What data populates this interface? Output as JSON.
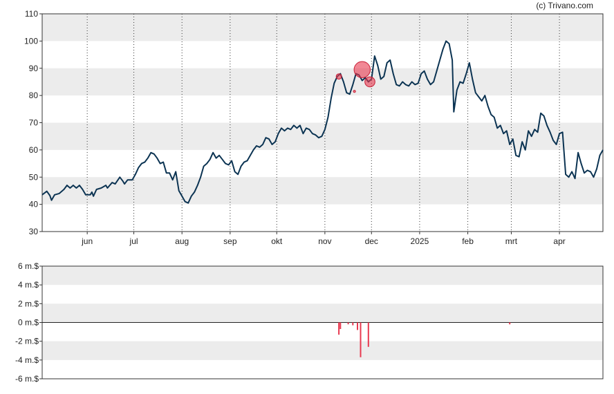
{
  "copyright": "(c) Trivano.com",
  "chart_data": [
    {
      "type": "line",
      "title": "",
      "xlabel": "",
      "ylabel": "",
      "ylim": [
        30,
        110
      ],
      "yticks": [
        30,
        40,
        50,
        60,
        70,
        80,
        90,
        100,
        110
      ],
      "x_range": [
        "2024-05-03",
        "2025-04-29"
      ],
      "month_labels": [
        {
          "label": "jun",
          "date": "2024-06-01"
        },
        {
          "label": "jul",
          "date": "2024-07-01"
        },
        {
          "label": "aug",
          "date": "2024-08-01"
        },
        {
          "label": "sep",
          "date": "2024-09-01"
        },
        {
          "label": "okt",
          "date": "2024-10-01"
        },
        {
          "label": "nov",
          "date": "2024-11-01"
        },
        {
          "label": "dec",
          "date": "2024-12-01"
        },
        {
          "label": "2025",
          "date": "2025-01-01"
        },
        {
          "label": "feb",
          "date": "2025-02-01"
        },
        {
          "label": "mrt",
          "date": "2025-03-01"
        },
        {
          "label": "apr",
          "date": "2025-04-01"
        }
      ],
      "grid": true,
      "line_color": "#0b3352",
      "series": [
        {
          "points": [
            [
              "2024-05-03",
              43.5
            ],
            [
              "2024-05-06",
              44.8
            ],
            [
              "2024-05-08",
              43.2
            ],
            [
              "2024-05-09",
              41.5
            ],
            [
              "2024-05-11",
              43.5
            ],
            [
              "2024-05-14",
              44.0
            ],
            [
              "2024-05-17",
              45.5
            ],
            [
              "2024-05-19",
              47.0
            ],
            [
              "2024-05-21",
              46.0
            ],
            [
              "2024-05-23",
              47.0
            ],
            [
              "2024-05-25",
              46.0
            ],
            [
              "2024-05-27",
              47.0
            ],
            [
              "2024-05-29",
              45.5
            ],
            [
              "2024-05-31",
              43.5
            ],
            [
              "2024-06-03",
              43.5
            ],
            [
              "2024-06-04",
              44.5
            ],
            [
              "2024-06-05",
              43.0
            ],
            [
              "2024-06-07",
              45.5
            ],
            [
              "2024-06-10",
              46.0
            ],
            [
              "2024-06-13",
              47.0
            ],
            [
              "2024-06-14",
              46.0
            ],
            [
              "2024-06-17",
              48.0
            ],
            [
              "2024-06-19",
              47.5
            ],
            [
              "2024-06-22",
              50.0
            ],
            [
              "2024-06-24",
              48.5
            ],
            [
              "2024-06-25",
              47.5
            ],
            [
              "2024-06-27",
              49.0
            ],
            [
              "2024-06-30",
              49.0
            ],
            [
              "2024-07-02",
              51.0
            ],
            [
              "2024-07-04",
              53.5
            ],
            [
              "2024-07-06",
              55.0
            ],
            [
              "2024-07-08",
              55.5
            ],
            [
              "2024-07-10",
              57.0
            ],
            [
              "2024-07-12",
              59.0
            ],
            [
              "2024-07-14",
              58.5
            ],
            [
              "2024-07-16",
              57.0
            ],
            [
              "2024-07-18",
              55.0
            ],
            [
              "2024-07-20",
              55.5
            ],
            [
              "2024-07-22",
              51.5
            ],
            [
              "2024-07-24",
              51.5
            ],
            [
              "2024-07-26",
              49.0
            ],
            [
              "2024-07-28",
              52.0
            ],
            [
              "2024-07-30",
              45.0
            ],
            [
              "2024-08-01",
              43.0
            ],
            [
              "2024-08-03",
              41.0
            ],
            [
              "2024-08-05",
              40.5
            ],
            [
              "2024-08-07",
              43.0
            ],
            [
              "2024-08-09",
              44.5
            ],
            [
              "2024-08-11",
              47.0
            ],
            [
              "2024-08-13",
              50.0
            ],
            [
              "2024-08-15",
              54.0
            ],
            [
              "2024-08-17",
              55.0
            ],
            [
              "2024-08-19",
              56.5
            ],
            [
              "2024-08-21",
              59.0
            ],
            [
              "2024-08-23",
              57.0
            ],
            [
              "2024-08-25",
              58.0
            ],
            [
              "2024-08-27",
              56.5
            ],
            [
              "2024-08-29",
              55.0
            ],
            [
              "2024-08-31",
              54.5
            ],
            [
              "2024-09-02",
              56.0
            ],
            [
              "2024-09-04",
              52.0
            ],
            [
              "2024-09-06",
              51.0
            ],
            [
              "2024-09-08",
              54.0
            ],
            [
              "2024-09-10",
              55.5
            ],
            [
              "2024-09-12",
              56.0
            ],
            [
              "2024-09-14",
              58.0
            ],
            [
              "2024-09-16",
              60.0
            ],
            [
              "2024-09-18",
              61.5
            ],
            [
              "2024-09-20",
              61.0
            ],
            [
              "2024-09-22",
              62.0
            ],
            [
              "2024-09-24",
              64.5
            ],
            [
              "2024-09-26",
              64.0
            ],
            [
              "2024-09-28",
              62.0
            ],
            [
              "2024-09-30",
              63.0
            ],
            [
              "2024-10-02",
              66.0
            ],
            [
              "2024-10-04",
              68.0
            ],
            [
              "2024-10-06",
              67.0
            ],
            [
              "2024-10-08",
              68.0
            ],
            [
              "2024-10-10",
              67.5
            ],
            [
              "2024-10-12",
              69.0
            ],
            [
              "2024-10-14",
              68.0
            ],
            [
              "2024-10-16",
              69.0
            ],
            [
              "2024-10-18",
              66.0
            ],
            [
              "2024-10-20",
              68.0
            ],
            [
              "2024-10-22",
              67.5
            ],
            [
              "2024-10-24",
              66.0
            ],
            [
              "2024-10-26",
              65.5
            ],
            [
              "2024-10-28",
              64.5
            ],
            [
              "2024-10-30",
              65.0
            ],
            [
              "2024-11-01",
              67.5
            ],
            [
              "2024-11-03",
              72.0
            ],
            [
              "2024-11-05",
              79.0
            ],
            [
              "2024-11-07",
              84.5
            ],
            [
              "2024-11-09",
              87.0
            ],
            [
              "2024-11-11",
              88.0
            ],
            [
              "2024-11-13",
              85.0
            ],
            [
              "2024-11-15",
              81.0
            ],
            [
              "2024-11-17",
              80.5
            ],
            [
              "2024-11-19",
              84.0
            ],
            [
              "2024-11-21",
              88.0
            ],
            [
              "2024-11-23",
              87.5
            ],
            [
              "2024-11-25",
              85.5
            ],
            [
              "2024-11-27",
              86.5
            ],
            [
              "2024-11-29",
              85.0
            ],
            [
              "2024-12-01",
              86.0
            ],
            [
              "2024-12-03",
              94.5
            ],
            [
              "2024-12-05",
              91.0
            ],
            [
              "2024-12-07",
              86.0
            ],
            [
              "2024-12-09",
              87.0
            ],
            [
              "2024-12-11",
              92.0
            ],
            [
              "2024-12-13",
              93.0
            ],
            [
              "2024-12-15",
              88.0
            ],
            [
              "2024-12-17",
              84.0
            ],
            [
              "2024-12-19",
              83.5
            ],
            [
              "2024-12-21",
              85.0
            ],
            [
              "2024-12-23",
              84.0
            ],
            [
              "2024-12-25",
              83.5
            ],
            [
              "2024-12-27",
              85.0
            ],
            [
              "2024-12-29",
              84.0
            ],
            [
              "2024-12-31",
              84.5
            ],
            [
              "2025-01-02",
              88.0
            ],
            [
              "2025-01-04",
              89.0
            ],
            [
              "2025-01-06",
              86.0
            ],
            [
              "2025-01-08",
              84.0
            ],
            [
              "2025-01-10",
              85.0
            ],
            [
              "2025-01-12",
              89.0
            ],
            [
              "2025-01-14",
              93.0
            ],
            [
              "2025-01-16",
              97.0
            ],
            [
              "2025-01-18",
              100.0
            ],
            [
              "2025-01-20",
              99.0
            ],
            [
              "2025-01-22",
              93.0
            ],
            [
              "2025-01-23",
              74.0
            ],
            [
              "2025-01-25",
              82.0
            ],
            [
              "2025-01-27",
              85.0
            ],
            [
              "2025-01-29",
              84.5
            ],
            [
              "2025-01-31",
              88.0
            ],
            [
              "2025-02-02",
              92.0
            ],
            [
              "2025-02-04",
              86.0
            ],
            [
              "2025-02-06",
              81.0
            ],
            [
              "2025-02-08",
              79.5
            ],
            [
              "2025-02-10",
              78.0
            ],
            [
              "2025-02-12",
              80.0
            ],
            [
              "2025-02-14",
              76.0
            ],
            [
              "2025-02-16",
              73.0
            ],
            [
              "2025-02-18",
              72.0
            ],
            [
              "2025-02-20",
              68.0
            ],
            [
              "2025-02-22",
              69.0
            ],
            [
              "2025-02-24",
              66.0
            ],
            [
              "2025-02-26",
              67.0
            ],
            [
              "2025-02-28",
              62.0
            ],
            [
              "2025-03-02",
              64.0
            ],
            [
              "2025-03-04",
              58.0
            ],
            [
              "2025-03-06",
              57.5
            ],
            [
              "2025-03-08",
              63.0
            ],
            [
              "2025-03-10",
              60.0
            ],
            [
              "2025-03-12",
              67.0
            ],
            [
              "2025-03-14",
              65.0
            ],
            [
              "2025-03-16",
              67.5
            ],
            [
              "2025-03-18",
              66.5
            ],
            [
              "2025-03-20",
              73.5
            ],
            [
              "2025-03-22",
              72.5
            ],
            [
              "2025-03-24",
              69.0
            ],
            [
              "2025-03-26",
              66.5
            ],
            [
              "2025-03-28",
              63.5
            ],
            [
              "2025-03-30",
              62.0
            ],
            [
              "2025-04-01",
              66.0
            ],
            [
              "2025-04-03",
              66.5
            ],
            [
              "2025-04-05",
              51.0
            ],
            [
              "2025-04-07",
              50.0
            ],
            [
              "2025-04-09",
              52.0
            ],
            [
              "2025-04-11",
              49.5
            ],
            [
              "2025-04-13",
              59.0
            ],
            [
              "2025-04-15",
              55.0
            ],
            [
              "2025-04-17",
              51.5
            ],
            [
              "2025-04-19",
              52.5
            ],
            [
              "2025-04-21",
              52.0
            ],
            [
              "2025-04-23",
              50.0
            ],
            [
              "2025-04-25",
              53.0
            ],
            [
              "2025-04-27",
              58.0
            ],
            [
              "2025-04-29",
              60.0
            ]
          ]
        }
      ],
      "bubbles": [
        {
          "date": "2024-11-10",
          "value": 87.0,
          "size": 1.5
        },
        {
          "date": "2024-11-20",
          "value": 81.5,
          "size": 0.6
        },
        {
          "date": "2024-11-25",
          "value": 89.5,
          "size": 4.5
        },
        {
          "date": "2024-11-30",
          "value": 85.0,
          "size": 2.8
        }
      ],
      "bubble_color": "#e8384f"
    },
    {
      "type": "bar",
      "title": "",
      "xlabel": "",
      "ylabel": "",
      "ylim": [
        -6,
        6
      ],
      "ytick_labels": [
        {
          "value": 6,
          "label": "6 m.$"
        },
        {
          "value": 4,
          "label": "4 m.$"
        },
        {
          "value": 2,
          "label": "2 m.$"
        },
        {
          "value": 0,
          "label": "0 m.$"
        },
        {
          "value": -2,
          "label": "-2 m.$"
        },
        {
          "value": -4,
          "label": "-4 m.$"
        },
        {
          "value": -6,
          "label": "-6 m.$"
        }
      ],
      "grid": true,
      "bar_color": "#e8384f",
      "series": [
        {
          "points": [
            [
              "2024-11-10",
              -1.3
            ],
            [
              "2024-11-11",
              -0.7
            ],
            [
              "2024-11-16",
              -0.2
            ],
            [
              "2024-11-19",
              -0.3
            ],
            [
              "2024-11-22",
              -0.8
            ],
            [
              "2024-11-24",
              -3.7
            ],
            [
              "2024-11-29",
              -2.6
            ],
            [
              "2025-02-28",
              -0.2
            ]
          ]
        }
      ]
    }
  ]
}
